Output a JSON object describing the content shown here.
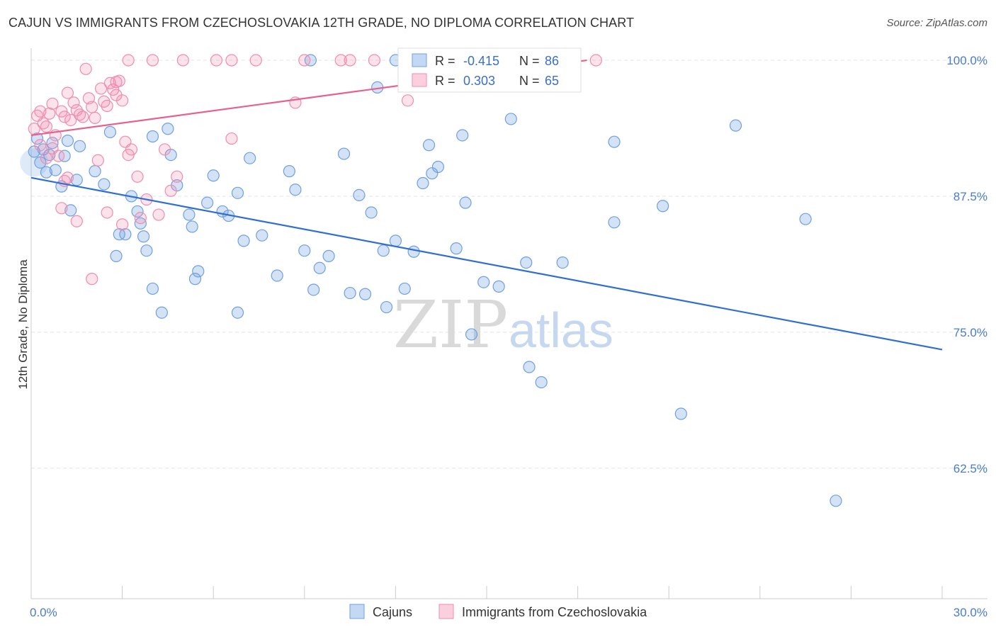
{
  "header": {
    "title": "CAJUN VS IMMIGRANTS FROM CZECHOSLOVAKIA 12TH GRADE, NO DIPLOMA CORRELATION CHART",
    "source": "Source: ZipAtlas.com"
  },
  "watermark": {
    "zip": "ZIP",
    "atlas": "atlas"
  },
  "legend": {
    "r_label": "R =",
    "n_label": "N =",
    "rows": [
      {
        "r": "-0.415",
        "n": "86",
        "color": "#6fa0e0"
      },
      {
        "r": "0.303",
        "n": "65",
        "color": "#f08cae"
      }
    ]
  },
  "chart_data": {
    "type": "scatter",
    "title": "CAJUN VS IMMIGRANTS FROM CZECHOSLOVAKIA 12TH GRADE, NO DIPLOMA CORRELATION CHART",
    "xlabel": "",
    "ylabel": "12th Grade, No Diploma",
    "xlim": [
      0,
      30
    ],
    "ylim": [
      50.5,
      101.5
    ],
    "x_tick_labels": [
      {
        "value": 0,
        "label": "0.0%"
      },
      {
        "value": 30,
        "label": "30.0%"
      }
    ],
    "y_tick_labels": [
      {
        "value": 100,
        "label": "100.0%"
      },
      {
        "value": 87.5,
        "label": "87.5%"
      },
      {
        "value": 75,
        "label": "75.0%"
      },
      {
        "value": 62.5,
        "label": "62.5%"
      }
    ],
    "grid": true,
    "legend_position": "top-center",
    "series": [
      {
        "name": "Cajuns",
        "color": "#6fa0e0",
        "trend": [
          [
            0,
            89.2
          ],
          [
            30,
            73.4
          ]
        ],
        "points": [
          [
            0.1,
            91.6
          ],
          [
            0.2,
            92.8
          ],
          [
            0.3,
            90.6
          ],
          [
            0.4,
            91.8
          ],
          [
            0.5,
            89.7
          ],
          [
            0.6,
            91.3
          ],
          [
            0.7,
            92.4
          ],
          [
            0.8,
            89.9
          ],
          [
            1.0,
            88.4
          ],
          [
            1.1,
            91.2
          ],
          [
            1.2,
            92.6
          ],
          [
            1.3,
            86.2
          ],
          [
            1.5,
            89.0
          ],
          [
            1.6,
            92.1
          ],
          [
            2.1,
            89.8
          ],
          [
            2.4,
            88.6
          ],
          [
            2.6,
            93.4
          ],
          [
            2.9,
            84.0
          ],
          [
            3.1,
            84.0
          ],
          [
            3.3,
            87.5
          ],
          [
            3.5,
            86.1
          ],
          [
            3.6,
            85.0
          ],
          [
            3.7,
            83.8
          ],
          [
            4.0,
            93.0
          ],
          [
            4.5,
            93.7
          ],
          [
            4.0,
            79.0
          ],
          [
            4.6,
            91.3
          ],
          [
            4.8,
            88.5
          ],
          [
            5.2,
            85.8
          ],
          [
            5.3,
            84.7
          ],
          [
            5.5,
            80.6
          ],
          [
            5.8,
            86.9
          ],
          [
            6.0,
            89.4
          ],
          [
            6.3,
            86.1
          ],
          [
            6.5,
            85.7
          ],
          [
            6.8,
            87.8
          ],
          [
            7.0,
            83.4
          ],
          [
            7.2,
            91.0
          ],
          [
            7.6,
            83.9
          ],
          [
            8.1,
            80.2
          ],
          [
            8.5,
            89.8
          ],
          [
            8.7,
            88.1
          ],
          [
            9.0,
            82.5
          ],
          [
            9.3,
            78.9
          ],
          [
            9.5,
            80.9
          ],
          [
            9.8,
            82.0
          ],
          [
            10.3,
            91.4
          ],
          [
            10.5,
            78.6
          ],
          [
            10.8,
            87.6
          ],
          [
            11.0,
            78.5
          ],
          [
            11.2,
            86.0
          ],
          [
            11.6,
            82.5
          ],
          [
            11.7,
            77.3
          ],
          [
            12.0,
            83.4
          ],
          [
            12.3,
            79.0
          ],
          [
            12.6,
            82.4
          ],
          [
            12.9,
            88.7
          ],
          [
            13.4,
            90.2
          ],
          [
            14.0,
            82.7
          ],
          [
            14.3,
            86.9
          ],
          [
            14.5,
            74.8
          ],
          [
            14.9,
            79.6
          ],
          [
            15.4,
            79.2
          ],
          [
            15.8,
            94.6
          ],
          [
            16.3,
            81.4
          ],
          [
            16.4,
            71.8
          ],
          [
            16.8,
            70.4
          ],
          [
            17.5,
            81.4
          ],
          [
            19.2,
            85.1
          ],
          [
            19.2,
            92.5
          ],
          [
            20.8,
            86.6
          ],
          [
            21.4,
            67.5
          ],
          [
            23.2,
            94.0
          ],
          [
            25.5,
            85.4
          ],
          [
            26.5,
            59.5
          ],
          [
            4.3,
            76.8
          ],
          [
            6.8,
            76.8
          ],
          [
            5.4,
            79.9
          ],
          [
            2.8,
            82.0
          ],
          [
            3.8,
            82.5
          ],
          [
            13.2,
            89.6
          ],
          [
            11.4,
            97.5
          ],
          [
            9.2,
            100.0
          ],
          [
            12.0,
            100.0
          ],
          [
            14.2,
            93.1
          ],
          [
            13.1,
            92.2
          ]
        ]
      },
      {
        "name": "Immigrants from Czechoslovakia",
        "color": "#f08cae",
        "trend": [
          [
            0,
            93.1
          ],
          [
            18.3,
            100.0
          ]
        ],
        "points": [
          [
            0.1,
            93.7
          ],
          [
            0.2,
            94.9
          ],
          [
            0.3,
            95.3
          ],
          [
            0.4,
            94.2
          ],
          [
            0.5,
            93.9
          ],
          [
            0.6,
            95.1
          ],
          [
            0.7,
            96.0
          ],
          [
            0.8,
            93.1
          ],
          [
            0.9,
            91.2
          ],
          [
            1.0,
            95.3
          ],
          [
            1.1,
            94.8
          ],
          [
            1.2,
            97.0
          ],
          [
            1.3,
            94.5
          ],
          [
            1.4,
            96.1
          ],
          [
            1.5,
            95.4
          ],
          [
            1.6,
            95.0
          ],
          [
            1.7,
            94.8
          ],
          [
            1.8,
            99.2
          ],
          [
            1.9,
            96.5
          ],
          [
            2.0,
            95.7
          ],
          [
            2.1,
            94.7
          ],
          [
            2.2,
            90.8
          ],
          [
            2.3,
            97.4
          ],
          [
            2.4,
            96.2
          ],
          [
            2.5,
            95.8
          ],
          [
            2.6,
            97.9
          ],
          [
            2.7,
            97.3
          ],
          [
            2.8,
            96.8
          ],
          [
            2.9,
            98.1
          ],
          [
            3.0,
            96.3
          ],
          [
            3.1,
            92.5
          ],
          [
            3.2,
            91.3
          ],
          [
            3.3,
            91.8
          ],
          [
            3.5,
            89.3
          ],
          [
            3.6,
            85.5
          ],
          [
            3.8,
            87.2
          ],
          [
            4.2,
            85.8
          ],
          [
            4.4,
            91.8
          ],
          [
            4.6,
            88.0
          ],
          [
            4.8,
            89.3
          ],
          [
            6.6,
            92.8
          ],
          [
            8.7,
            96.1
          ],
          [
            0.3,
            92.2
          ],
          [
            0.5,
            91.0
          ],
          [
            0.7,
            91.9
          ],
          [
            1.0,
            86.4
          ],
          [
            1.2,
            89.2
          ],
          [
            1.5,
            85.2
          ],
          [
            2.0,
            79.9
          ],
          [
            2.5,
            86.0
          ],
          [
            3.0,
            84.9
          ],
          [
            3.2,
            100.0
          ],
          [
            4.0,
            100.0
          ],
          [
            5.0,
            100.0
          ],
          [
            6.1,
            100.0
          ],
          [
            6.6,
            100.0
          ],
          [
            7.4,
            100.0
          ],
          [
            9.0,
            100.0
          ],
          [
            10.2,
            100.0
          ],
          [
            10.5,
            100.0
          ],
          [
            11.3,
            100.0
          ],
          [
            18.6,
            100.0
          ],
          [
            12.4,
            96.3
          ],
          [
            1.1,
            88.9
          ],
          [
            2.8,
            98.0
          ]
        ]
      }
    ]
  },
  "bottom_legend": {
    "items": [
      {
        "label": "Cajuns",
        "color": "#6fa0e0"
      },
      {
        "label": "Immigrants from Czechoslovakia",
        "color": "#f08cae"
      }
    ]
  }
}
